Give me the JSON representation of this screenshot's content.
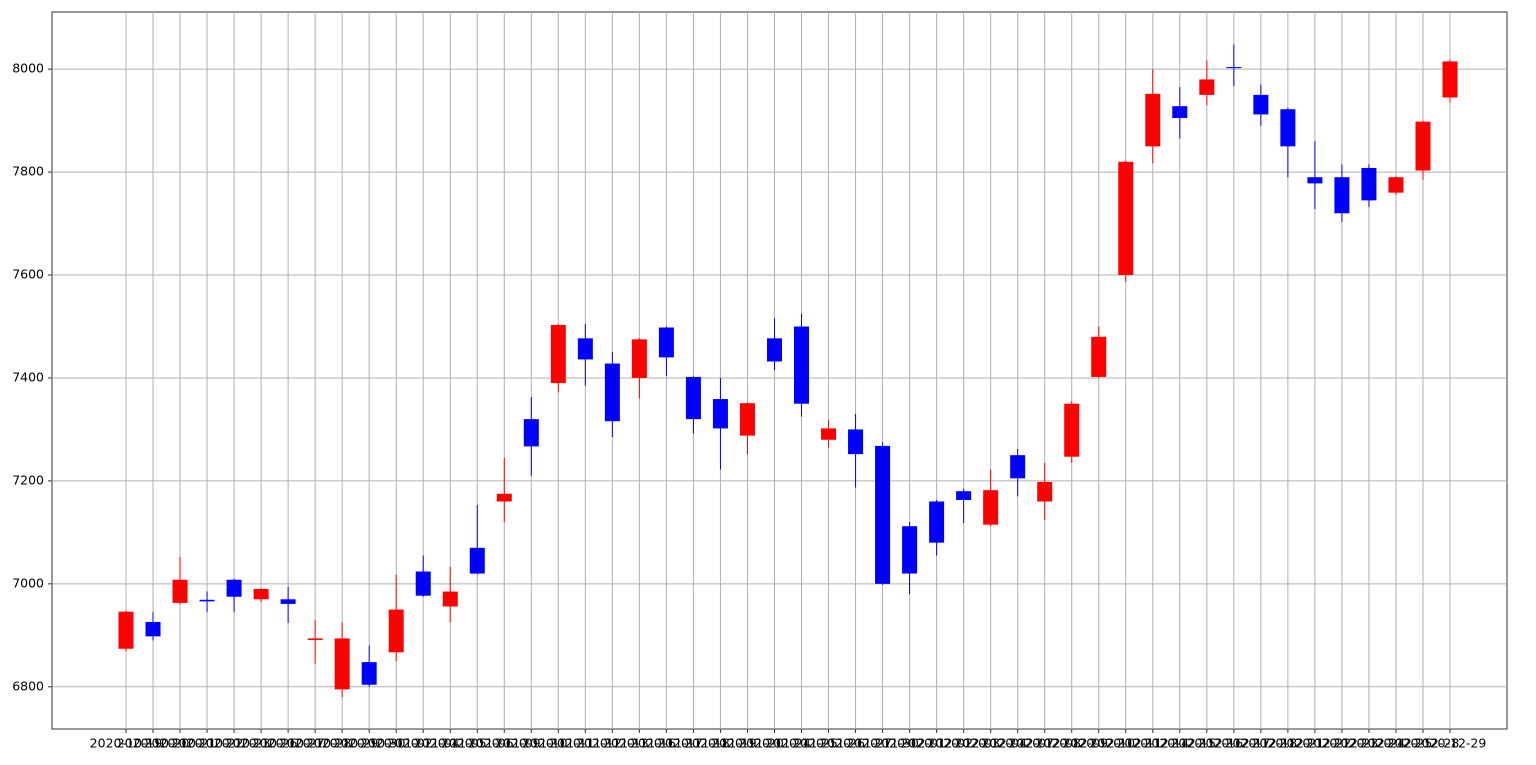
{
  "chart_data": {
    "type": "candlestick",
    "categories": [
      "2020-10-19",
      "2020-10-20",
      "2020-10-21",
      "2020-10-22",
      "2020-10-23",
      "2020-10-26",
      "2020-10-27",
      "2020-10-28",
      "2020-10-29",
      "2020-10-30",
      "2020-11-02",
      "2020-11-04",
      "2020-11-05",
      "2020-11-06",
      "2020-11-09",
      "2020-11-10",
      "2020-11-11",
      "2020-11-12",
      "2020-11-13",
      "2020-11-16",
      "2020-11-17",
      "2020-11-18",
      "2020-11-19",
      "2020-11-20",
      "2020-11-24",
      "2020-11-25",
      "2020-11-26",
      "2020-11-27",
      "2020-11-30",
      "2020-12-01",
      "2020-12-02",
      "2020-12-03",
      "2020-12-04",
      "2020-12-07",
      "2020-12-08",
      "2020-12-09",
      "2020-12-10",
      "2020-12-11",
      "2020-12-14",
      "2020-12-15",
      "2020-12-16",
      "2020-12-17",
      "2020-12-18",
      "2020-12-21",
      "2020-12-22",
      "2020-12-23",
      "2020-12-24",
      "2020-12-25",
      "2020-12-28",
      "2020-12-29"
    ],
    "open": [
      6874,
      6926,
      6963,
      6969,
      7008,
      6970,
      6970,
      6891,
      6795,
      6848,
      6867,
      7024,
      6956,
      7070,
      7160,
      7320,
      7390,
      7477,
      7428,
      7400,
      7498,
      7402,
      7359,
      7288,
      7477,
      7500,
      7280,
      7300,
      7268,
      7112,
      7160,
      7180,
      7115,
      7250,
      7160,
      7247,
      7402,
      7600,
      7850,
      7928,
      7950,
      8004,
      7950,
      7922,
      7790,
      7790,
      7808,
      7760,
      7803,
      7945
    ],
    "high": [
      6948,
      6945,
      7052,
      6985,
      7010,
      6992,
      6994,
      6930,
      6925,
      6880,
      7018,
      7055,
      7033,
      7153,
      7245,
      7363,
      7505,
      7505,
      7450,
      7477,
      7500,
      7404,
      7400,
      7352,
      7516,
      7525,
      7318,
      7330,
      7275,
      7120,
      7163,
      7185,
      7222,
      7262,
      7235,
      7355,
      7500,
      7822,
      8000,
      7965,
      8017,
      8048,
      7970,
      7925,
      7860,
      7815,
      7815,
      7792,
      7900,
      8018
    ],
    "low": [
      6868,
      6890,
      6960,
      6945,
      6945,
      6965,
      6924,
      6845,
      6780,
      6800,
      6850,
      6975,
      6925,
      7018,
      7120,
      7210,
      7372,
      7385,
      7285,
      7360,
      7404,
      7292,
      7222,
      7252,
      7415,
      7325,
      7265,
      7187,
      6998,
      6980,
      7055,
      7118,
      7112,
      7170,
      7124,
      7235,
      7400,
      7587,
      7817,
      7865,
      7930,
      7967,
      7890,
      7790,
      7728,
      7703,
      7732,
      7755,
      7785,
      7935
    ],
    "close": [
      6946,
      6898,
      7008,
      6966,
      6975,
      6990,
      6961,
      6894,
      6894,
      6804,
      6950,
      6977,
      6985,
      7020,
      7175,
      7267,
      7503,
      7436,
      7316,
      7475,
      7440,
      7320,
      7302,
      7351,
      7432,
      7350,
      7302,
      7252,
      7000,
      7020,
      7080,
      7163,
      7182,
      7205,
      7198,
      7350,
      7480,
      7820,
      7952,
      7905,
      7980,
      8002,
      7912,
      7850,
      7778,
      7720,
      7745,
      7790,
      7898,
      8015
    ],
    "up_color": "red",
    "down_color": "blue",
    "ylim": [
      6718,
      8111
    ],
    "yticks": [
      6800,
      7000,
      7200,
      7400,
      7600,
      7800,
      8000
    ],
    "grid": true
  }
}
